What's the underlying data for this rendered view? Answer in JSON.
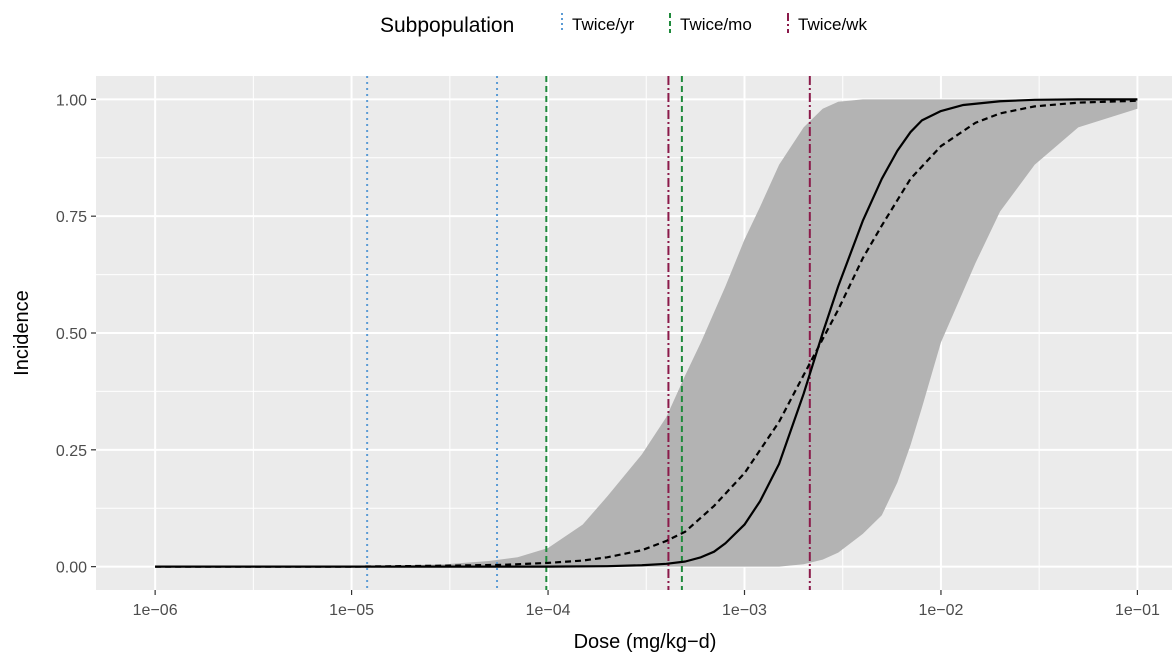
{
  "chart_data": {
    "type": "line",
    "title": "",
    "xlabel": "Dose (mg/kg−d)",
    "ylabel": "Incidence",
    "x_scale": "log10",
    "xlim": [
      5e-07,
      0.15
    ],
    "ylim": [
      -0.05,
      1.05
    ],
    "x_ticks": [
      {
        "value": 1e-06,
        "label": "1e−06"
      },
      {
        "value": 1e-05,
        "label": "1e−05"
      },
      {
        "value": 0.0001,
        "label": "1e−04"
      },
      {
        "value": 0.001,
        "label": "1e−03"
      },
      {
        "value": 0.01,
        "label": "1e−02"
      },
      {
        "value": 0.1,
        "label": "1e−01"
      }
    ],
    "y_ticks": [
      {
        "value": 0.0,
        "label": "0.00"
      },
      {
        "value": 0.25,
        "label": "0.25"
      },
      {
        "value": 0.5,
        "label": "0.50"
      },
      {
        "value": 0.75,
        "label": "0.75"
      },
      {
        "value": 1.0,
        "label": "1.00"
      }
    ],
    "grid": true,
    "panel_background": "#ebebeb",
    "series": [
      {
        "style": "solid",
        "color": "#000000",
        "x": [
          1e-06,
          1e-05,
          0.0001,
          0.0002,
          0.0003,
          0.0004,
          0.0005,
          0.0006,
          0.0007,
          0.0008,
          0.001,
          0.0012,
          0.0015,
          0.002,
          0.0025,
          0.003,
          0.004,
          0.005,
          0.006,
          0.007,
          0.008,
          0.01,
          0.013,
          0.02,
          0.03,
          0.05,
          0.1
        ],
        "y": [
          0.0,
          0.0,
          0.0,
          0.001,
          0.003,
          0.006,
          0.011,
          0.02,
          0.032,
          0.05,
          0.09,
          0.14,
          0.22,
          0.37,
          0.5,
          0.6,
          0.74,
          0.83,
          0.89,
          0.93,
          0.955,
          0.975,
          0.988,
          0.996,
          0.999,
          1.0,
          1.0
        ]
      },
      {
        "style": "dashed",
        "color": "#000000",
        "x": [
          1e-06,
          1e-05,
          3e-05,
          6e-05,
          0.0001,
          0.00015,
          0.0002,
          0.0003,
          0.0004,
          0.0005,
          0.0007,
          0.001,
          0.0015,
          0.002,
          0.003,
          0.004,
          0.005,
          0.007,
          0.01,
          0.015,
          0.02,
          0.03,
          0.05,
          0.1
        ],
        "y": [
          0.0,
          0.0,
          0.002,
          0.004,
          0.008,
          0.013,
          0.02,
          0.035,
          0.055,
          0.075,
          0.13,
          0.2,
          0.31,
          0.41,
          0.55,
          0.66,
          0.73,
          0.83,
          0.9,
          0.95,
          0.97,
          0.985,
          0.993,
          0.997
        ]
      }
    ],
    "ribbon": {
      "color": "#b3b3b3",
      "x": [
        1e-06,
        1e-05,
        3e-05,
        5e-05,
        7e-05,
        0.0001,
        0.00015,
        0.0002,
        0.0003,
        0.0004,
        0.0005,
        0.0006,
        0.0008,
        0.001,
        0.0012,
        0.0015,
        0.002,
        0.0025,
        0.003,
        0.004,
        0.005,
        0.006,
        0.007,
        0.008,
        0.01,
        0.015,
        0.02,
        0.03,
        0.05,
        0.1
      ],
      "lower": [
        0.0,
        0.0,
        0.0,
        0.0,
        0.0,
        0.0,
        0.0,
        0.0,
        0.0,
        0.0,
        0.0,
        0.0,
        0.0,
        0.0,
        0.0,
        0.0,
        0.005,
        0.015,
        0.03,
        0.07,
        0.11,
        0.18,
        0.26,
        0.34,
        0.48,
        0.65,
        0.76,
        0.86,
        0.94,
        0.98
      ],
      "upper": [
        0.0,
        0.0,
        0.005,
        0.012,
        0.02,
        0.04,
        0.09,
        0.15,
        0.24,
        0.32,
        0.41,
        0.48,
        0.6,
        0.7,
        0.77,
        0.86,
        0.94,
        0.98,
        0.995,
        1.0,
        1.0,
        1.0,
        1.0,
        1.0,
        1.0,
        1.0,
        1.0,
        1.0,
        1.0,
        1.0
      ]
    },
    "vlines": [
      {
        "group": "Twice/yr",
        "x": 1.2e-05,
        "color": "#5b9bd5",
        "style": "dotted"
      },
      {
        "group": "Twice/yr",
        "x": 5.5e-05,
        "color": "#5b9bd5",
        "style": "dotted"
      },
      {
        "group": "Twice/mo",
        "x": 9.8e-05,
        "color": "#1f8a3c",
        "style": "dashed"
      },
      {
        "group": "Twice/mo",
        "x": 0.00048,
        "color": "#1f8a3c",
        "style": "dashed"
      },
      {
        "group": "Twice/wk",
        "x": 0.00041,
        "color": "#8b1a4a",
        "style": "dashdot"
      },
      {
        "group": "Twice/wk",
        "x": 0.00215,
        "color": "#8b1a4a",
        "style": "dashdot"
      }
    ],
    "legend": {
      "title": "Subpopulation",
      "position": "top",
      "items": [
        {
          "label": "Twice/yr",
          "color": "#5b9bd5",
          "style": "dotted"
        },
        {
          "label": "Twice/mo",
          "color": "#1f8a3c",
          "style": "dashed"
        },
        {
          "label": "Twice/wk",
          "color": "#8b1a4a",
          "style": "dashdot"
        }
      ]
    }
  }
}
